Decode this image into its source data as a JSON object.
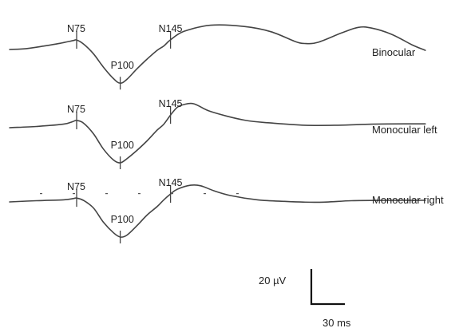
{
  "chart_data": {
    "type": "line",
    "description_units": {
      "x": "ms",
      "y": "µV"
    },
    "series": [
      {
        "name": "Binocular",
        "points": [
          [
            0,
            0
          ],
          [
            15,
            0.5
          ],
          [
            30,
            1.9
          ],
          [
            45,
            3.5
          ],
          [
            57,
            5.1
          ],
          [
            60,
            5.4
          ],
          [
            66,
            3.2
          ],
          [
            75,
            -2.4
          ],
          [
            84,
            -10.1
          ],
          [
            93,
            -16.6
          ],
          [
            99,
            -19.2
          ],
          [
            105,
            -17.0
          ],
          [
            114,
            -11.0
          ],
          [
            123,
            -5.5
          ],
          [
            132,
            -0.5
          ],
          [
            138,
            2.0
          ],
          [
            144,
            5.5
          ],
          [
            156,
            10.3
          ],
          [
            180,
            13.8
          ],
          [
            210,
            13.1
          ],
          [
            234,
            10.1
          ],
          [
            255,
            4.7
          ],
          [
            264,
            3.4
          ],
          [
            276,
            4.1
          ],
          [
            297,
            9.4
          ],
          [
            312,
            12.6
          ],
          [
            324,
            12.2
          ],
          [
            342,
            8.6
          ],
          [
            360,
            2.7
          ],
          [
            372,
            -0.5
          ]
        ],
        "peaks": [
          {
            "label": "N75",
            "x": 60,
            "y": 5.4
          },
          {
            "label": "P100",
            "x": 99,
            "y": -19.2
          },
          {
            "label": "N145",
            "x": 144,
            "y": 5.5
          }
        ]
      },
      {
        "name": "Monocular left",
        "points": [
          [
            0,
            0
          ],
          [
            24,
            0.7
          ],
          [
            48,
            2.0
          ],
          [
            57,
            3.6
          ],
          [
            60,
            4.1
          ],
          [
            66,
            2.7
          ],
          [
            75,
            -3.4
          ],
          [
            84,
            -12.2
          ],
          [
            93,
            -18.4
          ],
          [
            99,
            -20.0
          ],
          [
            105,
            -17.7
          ],
          [
            114,
            -12.9
          ],
          [
            123,
            -7.5
          ],
          [
            132,
            -1.4
          ],
          [
            138,
            2.0
          ],
          [
            144,
            7.2
          ],
          [
            150,
            11.6
          ],
          [
            156,
            13.2
          ],
          [
            165,
            13.6
          ],
          [
            180,
            9.2
          ],
          [
            210,
            4.3
          ],
          [
            234,
            2.7
          ],
          [
            264,
            1.4
          ],
          [
            294,
            1.4
          ],
          [
            324,
            2.0
          ],
          [
            354,
            2.2
          ],
          [
            372,
            2.2
          ]
        ],
        "peaks": [
          {
            "label": "N75",
            "x": 60,
            "y": 4.1
          },
          {
            "label": "P100",
            "x": 99,
            "y": -20.0
          },
          {
            "label": "N145",
            "x": 144,
            "y": 7.2
          }
        ]
      },
      {
        "name": "Monocular right",
        "points": [
          [
            0,
            0
          ],
          [
            24,
            0.7
          ],
          [
            48,
            1.2
          ],
          [
            57,
            1.9
          ],
          [
            60,
            2.2
          ],
          [
            66,
            0.9
          ],
          [
            75,
            -3.4
          ],
          [
            84,
            -11.6
          ],
          [
            93,
            -17.6
          ],
          [
            99,
            -20.0
          ],
          [
            105,
            -18.9
          ],
          [
            114,
            -13.5
          ],
          [
            123,
            -7.5
          ],
          [
            132,
            -2.7
          ],
          [
            138,
            1.2
          ],
          [
            144,
            4.5
          ],
          [
            150,
            7.2
          ],
          [
            162,
            9.5
          ],
          [
            171,
            9.2
          ],
          [
            183,
            6.3
          ],
          [
            198,
            3.6
          ],
          [
            222,
            1.2
          ],
          [
            246,
            0.3
          ],
          [
            276,
            -0.2
          ],
          [
            306,
            0.7
          ],
          [
            336,
            0.9
          ],
          [
            372,
            0.9
          ]
        ],
        "peaks": [
          {
            "label": "N75",
            "x": 60,
            "y": 2.2
          },
          {
            "label": "P100",
            "x": 99,
            "y": -20.0
          },
          {
            "label": "N145",
            "x": 144,
            "y": 4.5
          }
        ]
      }
    ],
    "scale_bar": {
      "voltage_label": "20 µV",
      "voltage_value": 20,
      "time_label": "30 ms",
      "time_value": 30
    },
    "grid": false,
    "legend": "right-of-traces"
  }
}
